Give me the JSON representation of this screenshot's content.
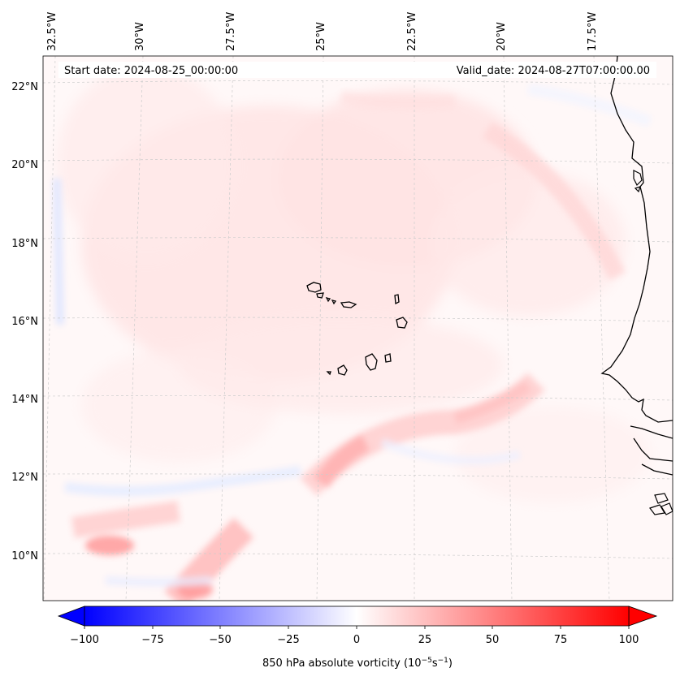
{
  "map": {
    "start_label": "Start date: 2024-08-25_00:00:00",
    "valid_label": "Valid_date: 2024-08-27T07:00:00.00",
    "longitude_labels": [
      "32.5°W",
      "30°W",
      "27.5°W",
      "25°W",
      "22.5°W",
      "20°W",
      "17.5°W"
    ],
    "latitude_labels": [
      "22°N",
      "20°N",
      "18°N",
      "16°N",
      "14°N",
      "12°N",
      "10°N"
    ],
    "field": "850 hPa absolute vorticity",
    "gridlines": true
  },
  "colorbar": {
    "label_main": "850 hPa absolute vorticity (10",
    "label_exp1": "−5",
    "label_mid": "s",
    "label_exp2": "−1",
    "label_end": ")",
    "ticks": [
      "−100",
      "−75",
      "−50",
      "−25",
      "0",
      "25",
      "50",
      "75",
      "100"
    ],
    "range": [
      -100,
      100
    ],
    "colormap": "bwr",
    "extend": "both",
    "colors": {
      "negative": "#0000ff",
      "zero": "#ffffff",
      "positive": "#ff0000"
    }
  }
}
